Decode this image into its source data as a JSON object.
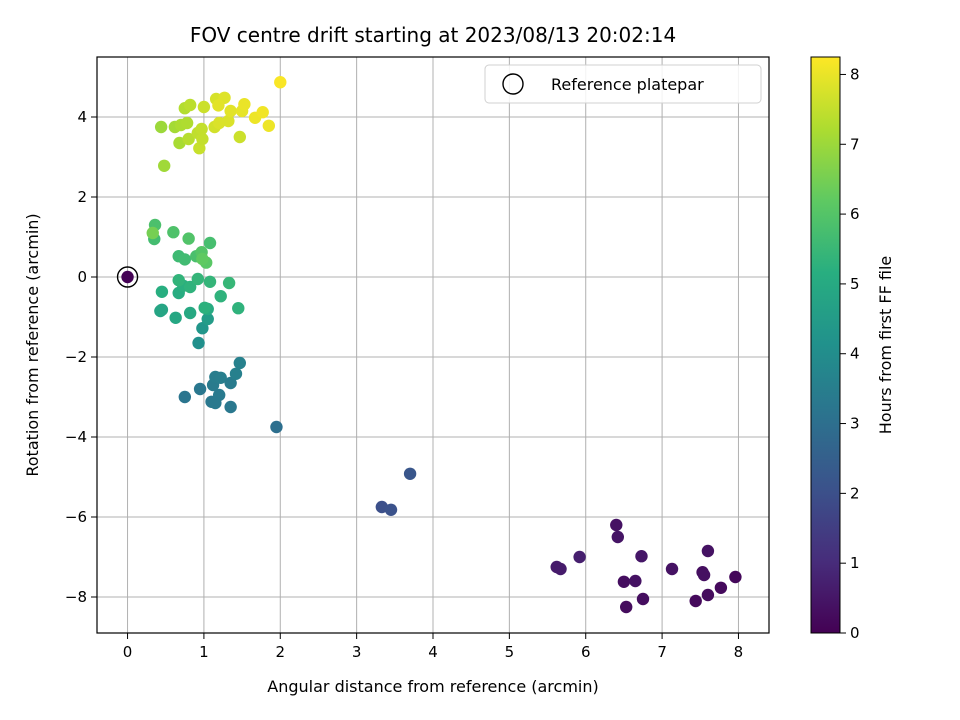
{
  "chart_data": {
    "type": "scatter",
    "title": "FOV centre drift starting at 2023/08/13 20:02:14",
    "xlabel": "Angular distance from reference (arcmin)",
    "ylabel": "Rotation from reference (arcmin)",
    "xlim": [
      -0.4,
      8.4
    ],
    "ylim": [
      -8.9,
      5.5
    ],
    "xticks": [
      0,
      1,
      2,
      3,
      4,
      5,
      6,
      7,
      8
    ],
    "xtick_labels": [
      "0",
      "1",
      "2",
      "3",
      "4",
      "5",
      "6",
      "7",
      "8"
    ],
    "yticks": [
      -8,
      -6,
      -4,
      -2,
      0,
      2,
      4
    ],
    "ytick_labels": [
      "−8",
      "−6",
      "−4",
      "−2",
      "0",
      "2",
      "4"
    ],
    "grid": true,
    "legend": {
      "placement": "top-right",
      "entries": [
        "Reference platepar"
      ]
    },
    "reference_point": {
      "x": 0,
      "y": 0
    },
    "colorbar": {
      "label": "Hours from first FF file",
      "range": [
        0,
        8.25
      ],
      "ticks": [
        0,
        1,
        2,
        3,
        4,
        5,
        6,
        7,
        8
      ],
      "tick_labels": [
        "0",
        "1",
        "2",
        "3",
        "4",
        "5",
        "6",
        "7",
        "8"
      ],
      "colormap": "viridis"
    },
    "points": [
      {
        "x": 0,
        "y": 0,
        "c": 0.02
      },
      {
        "x": 6.4,
        "y": -6.2,
        "c": 0.4
      },
      {
        "x": 6.42,
        "y": -6.5,
        "c": 0.45
      },
      {
        "x": 5.62,
        "y": -7.25,
        "c": 0.6
      },
      {
        "x": 5.67,
        "y": -7.3,
        "c": 0.62
      },
      {
        "x": 5.92,
        "y": -7.0,
        "c": 0.7
      },
      {
        "x": 6.5,
        "y": -7.62,
        "c": 0.3
      },
      {
        "x": 6.53,
        "y": -8.25,
        "c": 0.25
      },
      {
        "x": 6.65,
        "y": -7.6,
        "c": 0.4
      },
      {
        "x": 6.73,
        "y": -6.98,
        "c": 0.5
      },
      {
        "x": 6.75,
        "y": -8.05,
        "c": 0.3
      },
      {
        "x": 7.13,
        "y": -7.3,
        "c": 0.4
      },
      {
        "x": 7.44,
        "y": -8.1,
        "c": 0.2
      },
      {
        "x": 7.53,
        "y": -7.38,
        "c": 0.3
      },
      {
        "x": 7.55,
        "y": -7.45,
        "c": 0.35
      },
      {
        "x": 7.6,
        "y": -6.85,
        "c": 0.4
      },
      {
        "x": 7.6,
        "y": -7.95,
        "c": 0.25
      },
      {
        "x": 7.77,
        "y": -7.77,
        "c": 0.2
      },
      {
        "x": 7.96,
        "y": -7.5,
        "c": 0.15
      },
      {
        "x": 3.33,
        "y": -5.75,
        "c": 2.0
      },
      {
        "x": 3.45,
        "y": -5.82,
        "c": 2.05
      },
      {
        "x": 3.7,
        "y": -4.92,
        "c": 2.2
      },
      {
        "x": 1.95,
        "y": -3.75,
        "c": 3.0
      },
      {
        "x": 0.75,
        "y": -3.0,
        "c": 3.2
      },
      {
        "x": 0.95,
        "y": -2.8,
        "c": 3.25
      },
      {
        "x": 1.1,
        "y": -3.12,
        "c": 3.3
      },
      {
        "x": 1.15,
        "y": -3.15,
        "c": 3.32
      },
      {
        "x": 1.2,
        "y": -2.95,
        "c": 3.35
      },
      {
        "x": 1.35,
        "y": -3.25,
        "c": 3.3
      },
      {
        "x": 1.12,
        "y": -2.7,
        "c": 3.4
      },
      {
        "x": 1.15,
        "y": -2.5,
        "c": 3.45
      },
      {
        "x": 1.22,
        "y": -2.52,
        "c": 3.5
      },
      {
        "x": 1.35,
        "y": -2.65,
        "c": 3.4
      },
      {
        "x": 1.42,
        "y": -2.42,
        "c": 3.55
      },
      {
        "x": 1.47,
        "y": -2.15,
        "c": 3.6
      },
      {
        "x": 0.93,
        "y": -1.65,
        "c": 4.1
      },
      {
        "x": 0.98,
        "y": -1.28,
        "c": 4.3
      },
      {
        "x": 1.05,
        "y": -1.05,
        "c": 4.5
      },
      {
        "x": 0.43,
        "y": -0.85,
        "c": 4.8
      },
      {
        "x": 0.45,
        "y": -0.82,
        "c": 4.85
      },
      {
        "x": 0.63,
        "y": -1.02,
        "c": 4.9
      },
      {
        "x": 0.82,
        "y": -0.9,
        "c": 4.95
      },
      {
        "x": 1.05,
        "y": -0.8,
        "c": 5.0
      },
      {
        "x": 1.45,
        "y": -0.78,
        "c": 5.3
      },
      {
        "x": 1.01,
        "y": -0.77,
        "c": 5.25
      },
      {
        "x": 0.45,
        "y": -0.37,
        "c": 5.15
      },
      {
        "x": 0.67,
        "y": -0.4,
        "c": 5.1
      },
      {
        "x": 0.73,
        "y": -0.22,
        "c": 5.2
      },
      {
        "x": 0.82,
        "y": -0.25,
        "c": 5.3
      },
      {
        "x": 0.92,
        "y": -0.05,
        "c": 5.4
      },
      {
        "x": 0.67,
        "y": -0.08,
        "c": 5.35
      },
      {
        "x": 1.08,
        "y": -0.12,
        "c": 5.4
      },
      {
        "x": 1.22,
        "y": -0.48,
        "c": 5.3
      },
      {
        "x": 1.33,
        "y": -0.15,
        "c": 5.45
      },
      {
        "x": 0.35,
        "y": 0.95,
        "c": 5.7
      },
      {
        "x": 0.36,
        "y": 1.3,
        "c": 5.85
      },
      {
        "x": 0.6,
        "y": 1.12,
        "c": 5.9
      },
      {
        "x": 0.8,
        "y": 0.96,
        "c": 5.95
      },
      {
        "x": 0.67,
        "y": 0.52,
        "c": 5.6
      },
      {
        "x": 0.75,
        "y": 0.44,
        "c": 5.65
      },
      {
        "x": 0.9,
        "y": 0.52,
        "c": 5.8
      },
      {
        "x": 0.97,
        "y": 0.62,
        "c": 6.0
      },
      {
        "x": 1.03,
        "y": 0.36,
        "c": 6.1
      },
      {
        "x": 1.08,
        "y": 0.85,
        "c": 5.75
      },
      {
        "x": 0.98,
        "y": 0.45,
        "c": 6.2
      },
      {
        "x": 0.33,
        "y": 1.1,
        "c": 6.5
      },
      {
        "x": 0.44,
        "y": 3.75,
        "c": 7.0
      },
      {
        "x": 0.48,
        "y": 2.78,
        "c": 7.05
      },
      {
        "x": 0.62,
        "y": 3.75,
        "c": 7.1
      },
      {
        "x": 0.68,
        "y": 3.35,
        "c": 7.15
      },
      {
        "x": 0.7,
        "y": 3.8,
        "c": 7.2
      },
      {
        "x": 0.75,
        "y": 4.22,
        "c": 7.3
      },
      {
        "x": 0.78,
        "y": 3.85,
        "c": 7.25
      },
      {
        "x": 0.8,
        "y": 3.45,
        "c": 7.35
      },
      {
        "x": 0.82,
        "y": 4.3,
        "c": 7.4
      },
      {
        "x": 0.92,
        "y": 3.6,
        "c": 7.45
      },
      {
        "x": 0.94,
        "y": 3.22,
        "c": 7.55
      },
      {
        "x": 0.97,
        "y": 3.7,
        "c": 7.5
      },
      {
        "x": 0.98,
        "y": 3.45,
        "c": 7.5
      },
      {
        "x": 1.0,
        "y": 4.25,
        "c": 7.6
      },
      {
        "x": 1.14,
        "y": 3.75,
        "c": 7.7
      },
      {
        "x": 1.16,
        "y": 4.45,
        "c": 7.75
      },
      {
        "x": 1.2,
        "y": 3.85,
        "c": 7.8
      },
      {
        "x": 1.27,
        "y": 4.48,
        "c": 7.85
      },
      {
        "x": 1.32,
        "y": 3.9,
        "c": 7.8
      },
      {
        "x": 1.35,
        "y": 4.15,
        "c": 7.9
      },
      {
        "x": 1.47,
        "y": 3.5,
        "c": 7.6
      },
      {
        "x": 1.5,
        "y": 4.15,
        "c": 7.95
      },
      {
        "x": 1.53,
        "y": 4.32,
        "c": 8.0
      },
      {
        "x": 1.67,
        "y": 3.98,
        "c": 8.05
      },
      {
        "x": 1.77,
        "y": 4.12,
        "c": 8.1
      },
      {
        "x": 1.85,
        "y": 3.78,
        "c": 8.05
      },
      {
        "x": 2.0,
        "y": 4.87,
        "c": 8.2
      },
      {
        "x": 1.19,
        "y": 4.29,
        "c": 7.9
      }
    ]
  }
}
